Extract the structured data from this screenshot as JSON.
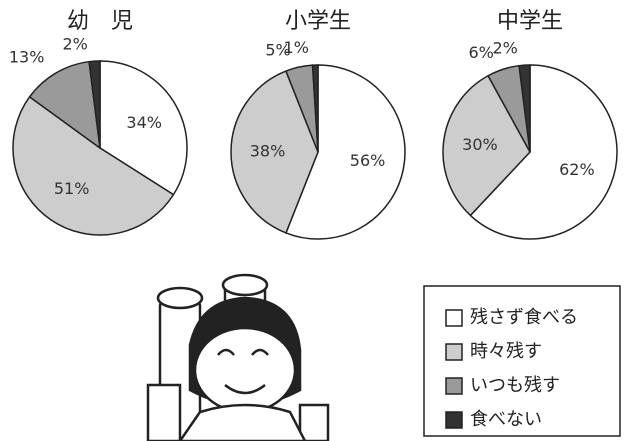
{
  "chart_data": [
    {
      "type": "pie",
      "title": "幼　児",
      "categories": [
        "残さず食べる",
        "時々残す",
        "いつも残す",
        "食べない"
      ],
      "colors": [
        "#ffffff",
        "#cdcdcd",
        "#9a9a9a",
        "#333333"
      ],
      "values": [
        34,
        51,
        13,
        2
      ],
      "value_labels": [
        "34%",
        "51%",
        "13%",
        "2%"
      ]
    },
    {
      "type": "pie",
      "title": "小学生",
      "categories": [
        "残さず食べる",
        "時々残す",
        "いつも残す",
        "食べない"
      ],
      "colors": [
        "#ffffff",
        "#cdcdcd",
        "#9a9a9a",
        "#333333"
      ],
      "values": [
        56,
        38,
        5,
        1
      ],
      "value_labels": [
        "56%",
        "38%",
        "5%",
        "1%"
      ]
    },
    {
      "type": "pie",
      "title": "中学生",
      "categories": [
        "残さず食べる",
        "時々残す",
        "いつも残す",
        "食べない"
      ],
      "colors": [
        "#ffffff",
        "#cdcdcd",
        "#9a9a9a",
        "#333333"
      ],
      "values": [
        62,
        30,
        6,
        2
      ],
      "value_labels": [
        "62%",
        "30%",
        "6%",
        "2%"
      ]
    }
  ]
}
